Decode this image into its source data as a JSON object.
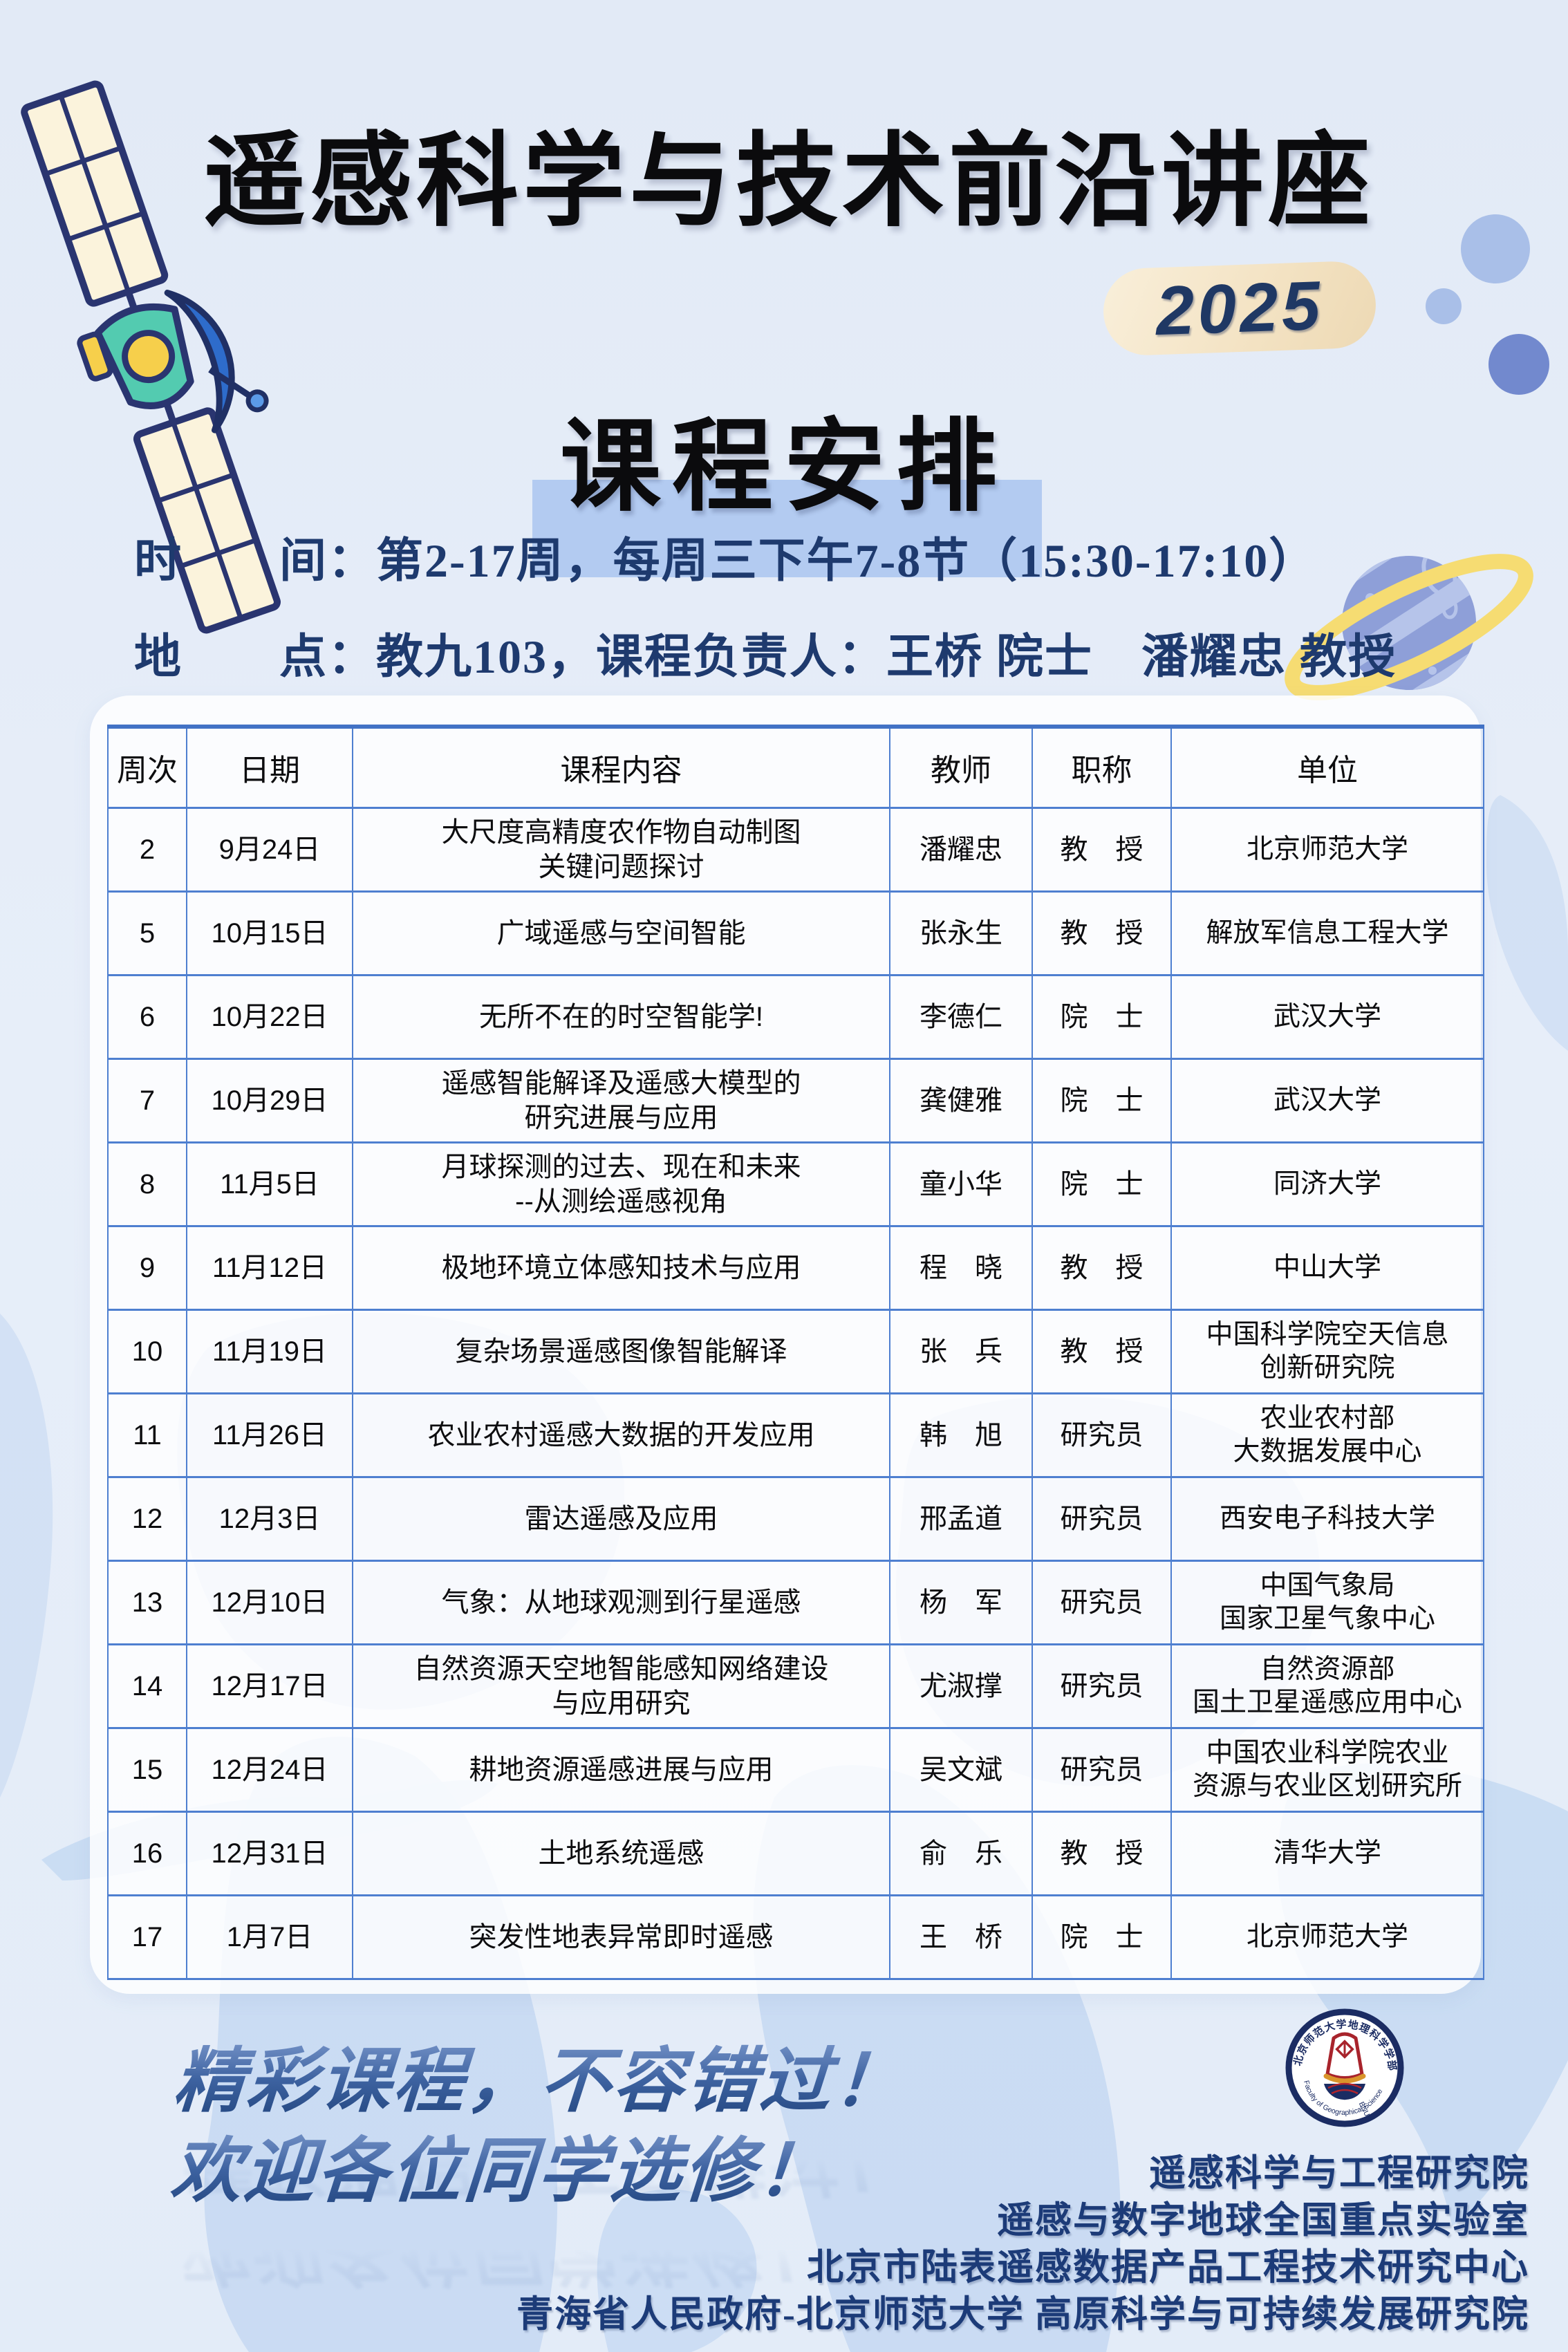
{
  "header": {
    "main_title": "遥感科学与技术前沿讲座",
    "year_badge": "2025",
    "section_title": "课程安排"
  },
  "info": {
    "time_line": "时　　间：第2-17周，每周三下午7-8节（15:30-17:10）",
    "location_line": "地　　点：教九103，课程负责人：王桥 院士　潘耀忠 教授"
  },
  "schedule": {
    "headers": [
      "周次",
      "日期",
      "课程内容",
      "教师",
      "职称",
      "单位"
    ],
    "rows": [
      {
        "week": "2",
        "date": "9月24日",
        "topic": "大尺度高精度农作物自动制图\n关键问题探讨",
        "teacher": "潘耀忠",
        "rank": "教　授",
        "affiliation": "北京师范大学"
      },
      {
        "week": "5",
        "date": "10月15日",
        "topic": "广域遥感与空间智能",
        "teacher": "张永生",
        "rank": "教　授",
        "affiliation": "解放军信息工程大学"
      },
      {
        "week": "6",
        "date": "10月22日",
        "topic": "无所不在的时空智能学!",
        "teacher": "李德仁",
        "rank": "院　士",
        "affiliation": "武汉大学"
      },
      {
        "week": "7",
        "date": "10月29日",
        "topic": "遥感智能解译及遥感大模型的\n研究进展与应用",
        "teacher": "龚健雅",
        "rank": "院　士",
        "affiliation": "武汉大学"
      },
      {
        "week": "8",
        "date": "11月5日",
        "topic": "月球探测的过去、现在和未来\n--从测绘遥感视角",
        "teacher": "童小华",
        "rank": "院　士",
        "affiliation": "同济大学"
      },
      {
        "week": "9",
        "date": "11月12日",
        "topic": "极地环境立体感知技术与应用",
        "teacher": "程　晓",
        "rank": "教　授",
        "affiliation": "中山大学"
      },
      {
        "week": "10",
        "date": "11月19日",
        "topic": "复杂场景遥感图像智能解译",
        "teacher": "张　兵",
        "rank": "教　授",
        "affiliation": "中国科学院空天信息\n创新研究院"
      },
      {
        "week": "11",
        "date": "11月26日",
        "topic": "农业农村遥感大数据的开发应用",
        "teacher": "韩　旭",
        "rank": "研究员",
        "affiliation": "农业农村部\n大数据发展中心"
      },
      {
        "week": "12",
        "date": "12月3日",
        "topic": "雷达遥感及应用",
        "teacher": "邢孟道",
        "rank": "研究员",
        "affiliation": "西安电子科技大学"
      },
      {
        "week": "13",
        "date": "12月10日",
        "topic": "气象：从地球观测到行星遥感",
        "teacher": "杨　军",
        "rank": "研究员",
        "affiliation": "中国气象局\n国家卫星气象中心"
      },
      {
        "week": "14",
        "date": "12月17日",
        "topic": "自然资源天空地智能感知网络建设\n与应用研究",
        "teacher": "尤淑撑",
        "rank": "研究员",
        "affiliation": "自然资源部\n国土卫星遥感应用中心"
      },
      {
        "week": "15",
        "date": "12月24日",
        "topic": "耕地资源遥感进展与应用",
        "teacher": "吴文斌",
        "rank": "研究员",
        "affiliation": "中国农业科学院农业\n资源与农业区划研究所"
      },
      {
        "week": "16",
        "date": "12月31日",
        "topic": "土地系统遥感",
        "teacher": "俞　乐",
        "rank": "教　授",
        "affiliation": "清华大学"
      },
      {
        "week": "17",
        "date": "1月7日",
        "topic": "突发性地表异常即时遥感",
        "teacher": "王　桥",
        "rank": "院　士",
        "affiliation": "北京师范大学"
      }
    ]
  },
  "footer": {
    "slogan_lines": [
      "精彩课程，不容错过！",
      "欢迎各位同学选修！"
    ],
    "organizations": [
      "遥感科学与工程研究院",
      "遥感与数字地球全国重点实验室",
      "北京市陆表遥感数据产品工程技术研究中心",
      "青海省人民政府-北京师范大学 高原科学与可持续发展研究院"
    ],
    "logo": {
      "cn_ring_text": "北京师范大学地理科学学部",
      "en_ring_text": "Faculty of Geographical Science",
      "abbr": "BNU"
    }
  },
  "colors": {
    "page_bg": "#E4ECF8",
    "navy_text": "#1E3A6E",
    "table_border": "#4E7FD0",
    "section_highlight": "#B3CBF1",
    "badge_bg": "#F6E8CD",
    "map_blue": "#C6D9F2",
    "ring_yellow": "#F6DC72",
    "planet_blue": "#8E9FD8",
    "deco_circle_light": "#A9BFE8",
    "deco_circle_dark": "#7289CE"
  }
}
